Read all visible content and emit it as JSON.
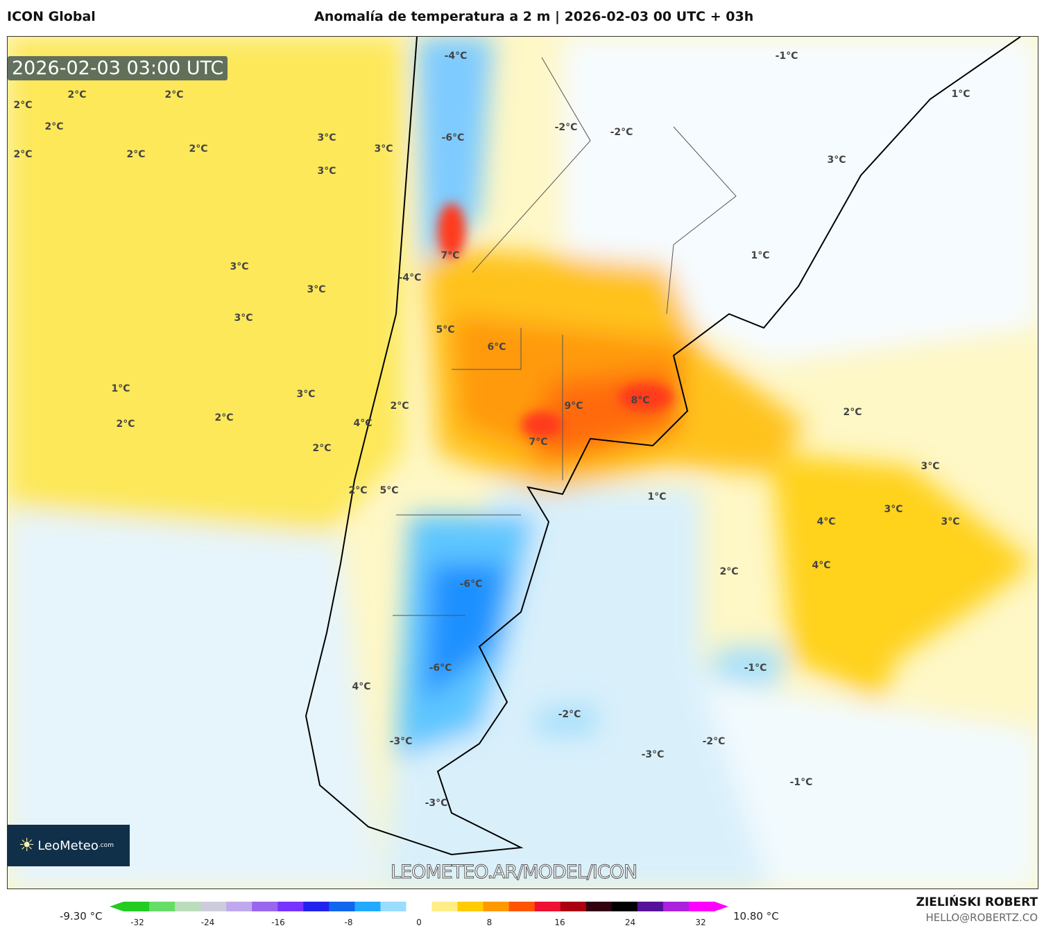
{
  "header": {
    "model": "ICON Global",
    "title": "Anomalía de temperatura a 2 m | 2026-02-03 00 UTC + 03h"
  },
  "map": {
    "valid_time": "2026-02-03 03:00 UTC",
    "watermark_url": "LEOMETEO.AR/MODEL/ICON",
    "logo_text": "LeoMeteo",
    "logo_suffix": ".com",
    "contour_labels": [
      "2°C",
      "2°C",
      "2°C",
      "2°C",
      "2°C",
      "2°C",
      "2°C",
      "3°C",
      "3°C",
      "3°C",
      "3°C",
      "3°C",
      "3°C",
      "3°C",
      "1°C",
      "2°C",
      "2°C",
      "2°C",
      "2°C",
      "4°C",
      "2°C",
      "5°C",
      "-4°C",
      "-6°C",
      "7°C",
      "-4°C",
      "5°C",
      "6°C",
      "9°C",
      "8°C",
      "7°C",
      "-2°C",
      "-2°C",
      "-1°C",
      "1°C",
      "3°C",
      "1°C",
      "2°C",
      "3°C",
      "3°C",
      "3°C",
      "4°C",
      "4°C",
      "1°C",
      "2°C",
      "-6°C",
      "-6°C",
      "4°C",
      "-3°C",
      "-3°C",
      "-2°C",
      "-1°C",
      "-2°C",
      "-3°C",
      "-1°C"
    ]
  },
  "colorbar": {
    "min_label": "-9.30 °C",
    "max_label": "10.80 °C",
    "ticks": [
      "-32",
      "-24",
      "-16",
      "-8",
      "0",
      "8",
      "16",
      "24",
      "32"
    ],
    "colors": [
      "#22cc22",
      "#66dd66",
      "#bbddbb",
      "#ccccdd",
      "#c0a8ee",
      "#9966ee",
      "#7733ff",
      "#2222ee",
      "#1166ee",
      "#22aaff",
      "#99ddff",
      "#ffffff",
      "#ffee88",
      "#ffcc00",
      "#ff9900",
      "#ff5500",
      "#ee1133",
      "#aa0011",
      "#330011",
      "#000000",
      "#551199",
      "#aa22dd",
      "#ff00ff"
    ]
  },
  "footer": {
    "author": "ZIELIŃSKI ROBERT",
    "email": "HELLO@ROBERTZ.CO"
  }
}
